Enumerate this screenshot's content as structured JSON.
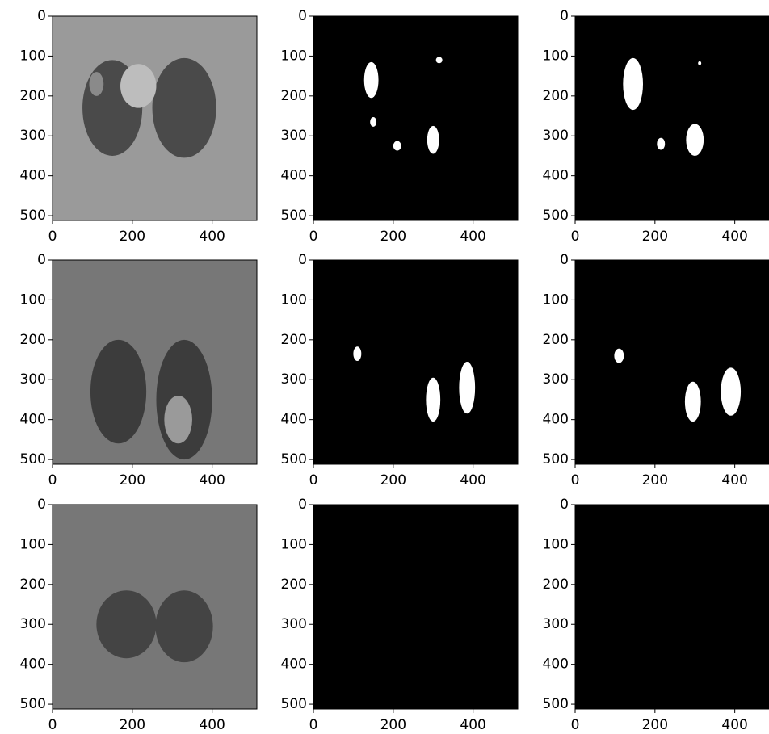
{
  "chart_data": [
    {
      "type": "image",
      "xlim": [
        0,
        512
      ],
      "ylim": [
        512,
        0
      ],
      "xticks": [
        0,
        200,
        400
      ],
      "yticks": [
        0,
        100,
        200,
        300,
        400,
        500
      ]
    },
    {
      "type": "image",
      "xlim": [
        0,
        512
      ],
      "ylim": [
        512,
        0
      ],
      "xticks": [
        0,
        200,
        400
      ],
      "yticks": [
        0,
        100,
        200,
        300,
        400,
        500
      ]
    },
    {
      "type": "image",
      "xlim": [
        0,
        512
      ],
      "ylim": [
        512,
        0
      ],
      "xticks": [
        0,
        200,
        400
      ],
      "yticks": [
        0,
        100,
        200,
        300,
        400,
        500
      ]
    },
    {
      "type": "image",
      "xlim": [
        0,
        512
      ],
      "ylim": [
        512,
        0
      ],
      "xticks": [
        0,
        200,
        400
      ],
      "yticks": [
        0,
        100,
        200,
        300,
        400,
        500
      ]
    },
    {
      "type": "image",
      "xlim": [
        0,
        512
      ],
      "ylim": [
        512,
        0
      ],
      "xticks": [
        0,
        200,
        400
      ],
      "yticks": [
        0,
        100,
        200,
        300,
        400,
        500
      ]
    },
    {
      "type": "image",
      "xlim": [
        0,
        512
      ],
      "ylim": [
        512,
        0
      ],
      "xticks": [
        0,
        200,
        400
      ],
      "yticks": [
        0,
        100,
        200,
        300,
        400,
        500
      ]
    },
    {
      "type": "image",
      "xlim": [
        0,
        512
      ],
      "ylim": [
        512,
        0
      ],
      "xticks": [
        0,
        200,
        400
      ],
      "yticks": [
        0,
        100,
        200,
        300,
        400,
        500
      ]
    },
    {
      "type": "image",
      "xlim": [
        0,
        512
      ],
      "ylim": [
        512,
        0
      ],
      "xticks": [
        0,
        200,
        400
      ],
      "yticks": [
        0,
        100,
        200,
        300,
        400,
        500
      ]
    },
    {
      "type": "image",
      "xlim": [
        0,
        512
      ],
      "ylim": [
        512,
        0
      ],
      "xticks": [
        0,
        200,
        400
      ],
      "yticks": [
        0,
        100,
        200,
        300,
        400,
        500
      ]
    }
  ]
}
